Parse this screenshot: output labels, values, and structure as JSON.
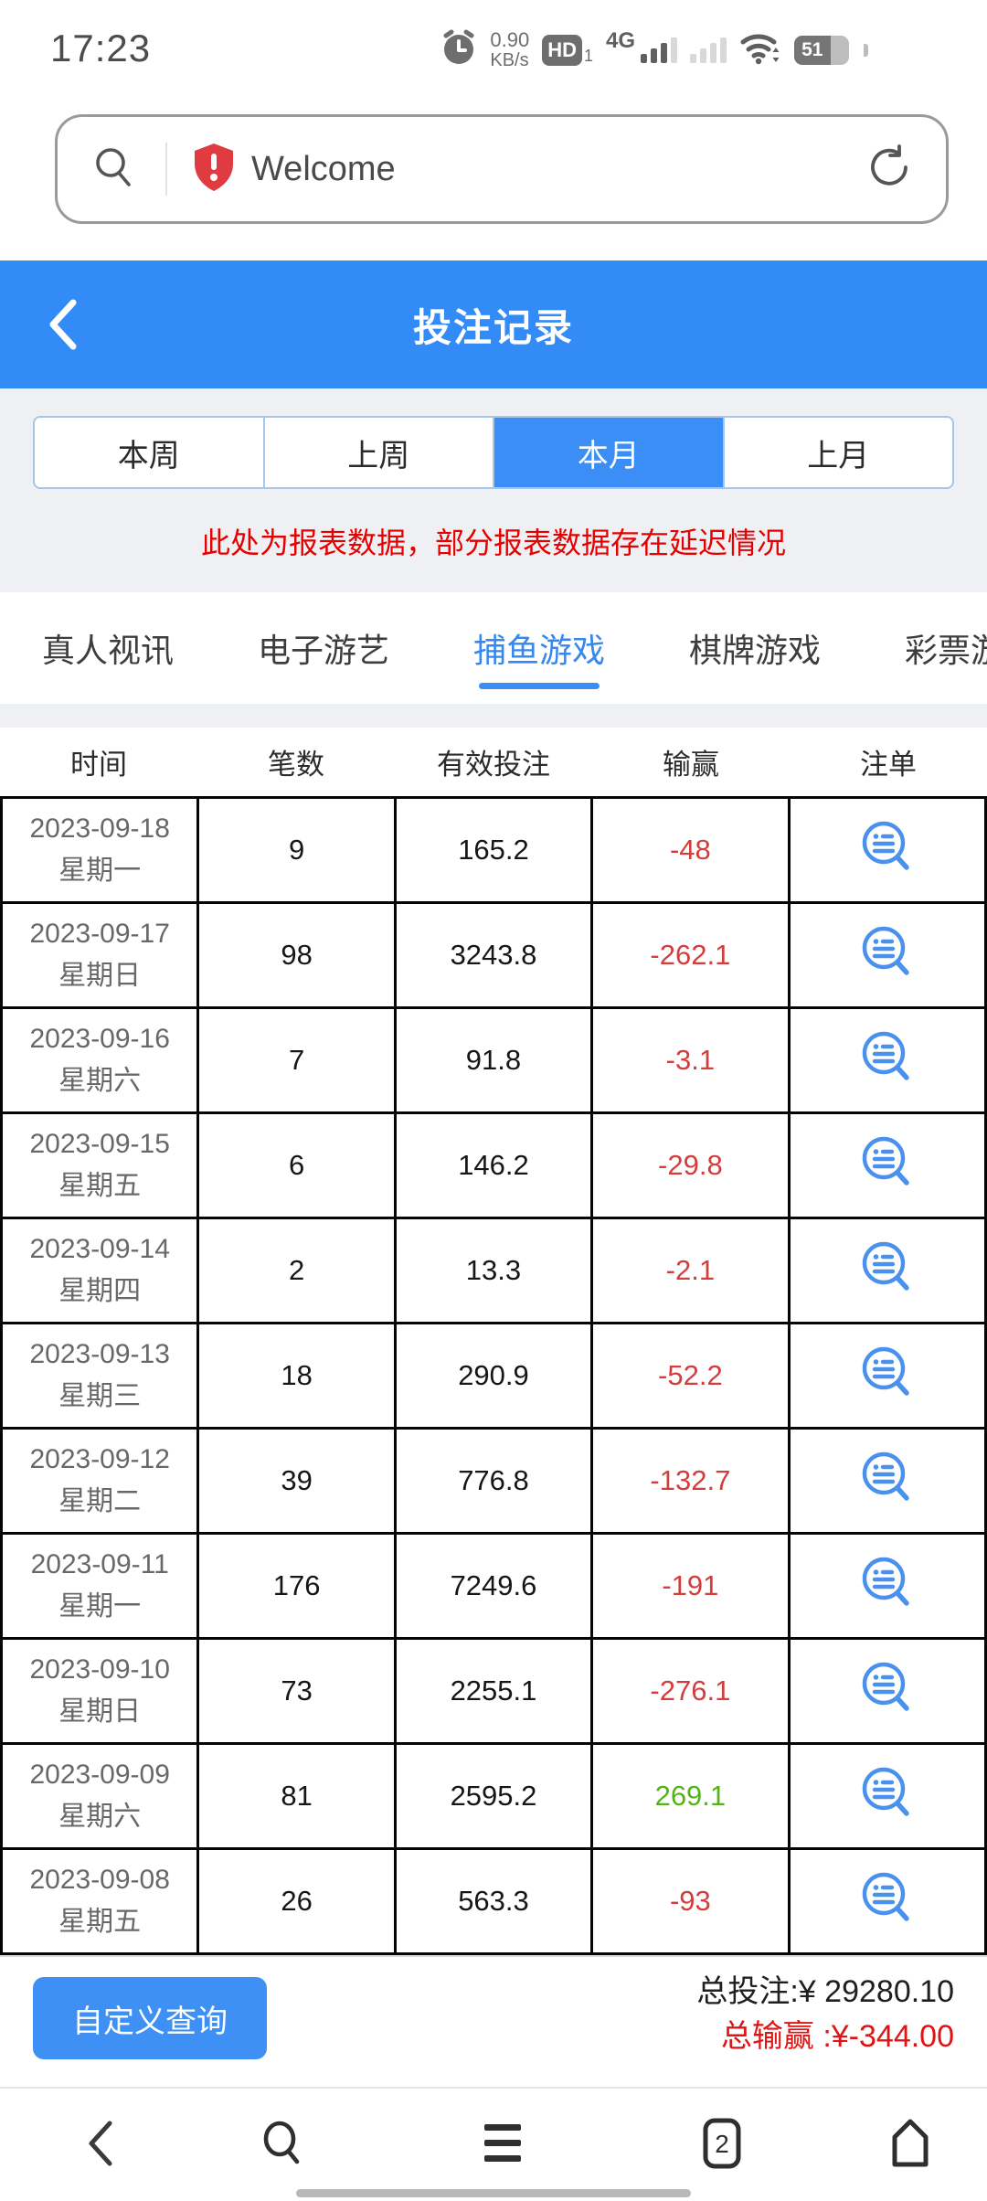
{
  "status_bar": {
    "time": "17:23",
    "speed_value": "0.90",
    "speed_unit": "KB/s",
    "hd_label": "HD",
    "hd_sub": "1",
    "network_label": "4G",
    "battery_percent": "51"
  },
  "address_bar": {
    "site_label": "Welcome"
  },
  "header": {
    "title": "投注记录"
  },
  "period_tabs": {
    "items": [
      {
        "label": "本周",
        "active": false
      },
      {
        "label": "上周",
        "active": false
      },
      {
        "label": "本月",
        "active": true
      },
      {
        "label": "上月",
        "active": false
      }
    ]
  },
  "notice": {
    "text": "此处为报表数据，部分报表数据存在延迟情况"
  },
  "category_tabs": {
    "items": [
      {
        "label": "真人视讯",
        "active": false
      },
      {
        "label": "电子游艺",
        "active": false
      },
      {
        "label": "捕鱼游戏",
        "active": true
      },
      {
        "label": "棋牌游戏",
        "active": false
      },
      {
        "label": "彩票游戏",
        "active": false
      }
    ]
  },
  "table": {
    "headers": [
      "时间",
      "笔数",
      "有效投注",
      "输赢",
      "注单"
    ],
    "rows": [
      {
        "date": "2023-09-18",
        "weekday": "星期一",
        "count": "9",
        "valid_bet": "165.2",
        "win_loss": "-48"
      },
      {
        "date": "2023-09-17",
        "weekday": "星期日",
        "count": "98",
        "valid_bet": "3243.8",
        "win_loss": "-262.1"
      },
      {
        "date": "2023-09-16",
        "weekday": "星期六",
        "count": "7",
        "valid_bet": "91.8",
        "win_loss": "-3.1"
      },
      {
        "date": "2023-09-15",
        "weekday": "星期五",
        "count": "6",
        "valid_bet": "146.2",
        "win_loss": "-29.8"
      },
      {
        "date": "2023-09-14",
        "weekday": "星期四",
        "count": "2",
        "valid_bet": "13.3",
        "win_loss": "-2.1"
      },
      {
        "date": "2023-09-13",
        "weekday": "星期三",
        "count": "18",
        "valid_bet": "290.9",
        "win_loss": "-52.2"
      },
      {
        "date": "2023-09-12",
        "weekday": "星期二",
        "count": "39",
        "valid_bet": "776.8",
        "win_loss": "-132.7"
      },
      {
        "date": "2023-09-11",
        "weekday": "星期一",
        "count": "176",
        "valid_bet": "7249.6",
        "win_loss": "-191"
      },
      {
        "date": "2023-09-10",
        "weekday": "星期日",
        "count": "73",
        "valid_bet": "2255.1",
        "win_loss": "-276.1"
      },
      {
        "date": "2023-09-09",
        "weekday": "星期六",
        "count": "81",
        "valid_bet": "2595.2",
        "win_loss": "269.1"
      },
      {
        "date": "2023-09-08",
        "weekday": "星期五",
        "count": "26",
        "valid_bet": "563.3",
        "win_loss": "-93"
      }
    ]
  },
  "footer": {
    "custom_query_label": "自定义查询",
    "total_bet_label": "总投注:¥ 29280.10",
    "total_win_loss_label": "总输赢 :¥-344.00"
  },
  "bottom_nav": {
    "tab_count": "2"
  },
  "colors": {
    "accent_blue": "#3a8ef6",
    "loss_red": "#d53c3c",
    "win_green": "#54b416",
    "notice_red": "#e60000"
  }
}
